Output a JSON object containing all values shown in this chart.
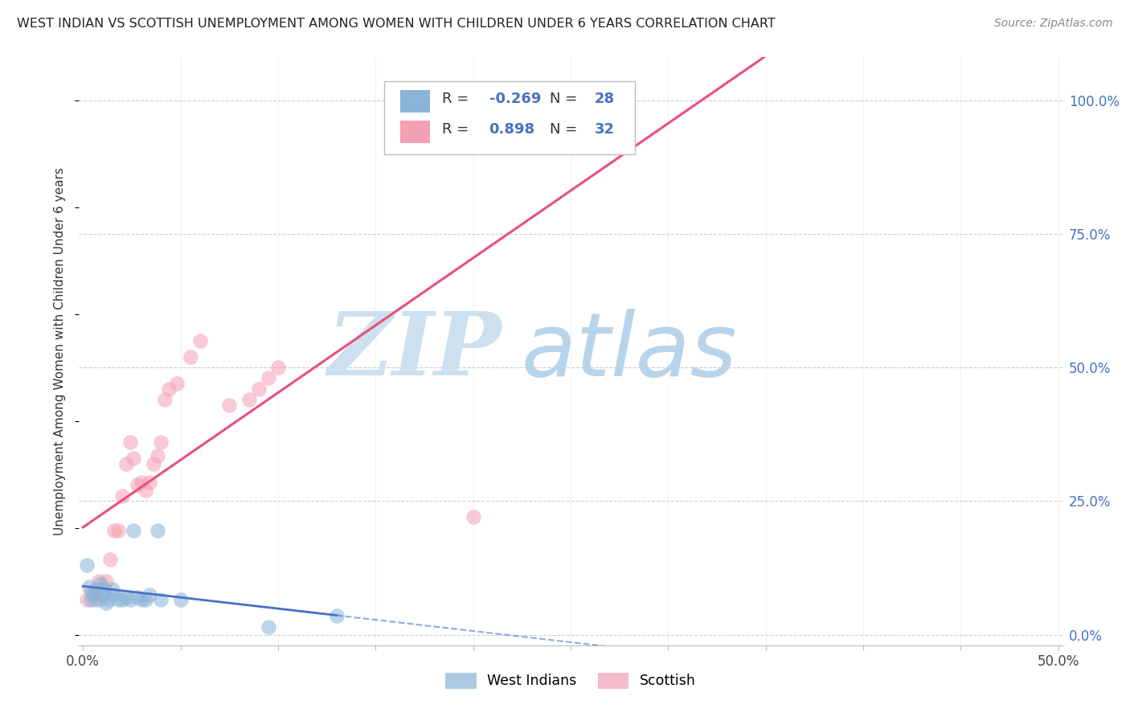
{
  "title": "WEST INDIAN VS SCOTTISH UNEMPLOYMENT AMONG WOMEN WITH CHILDREN UNDER 6 YEARS CORRELATION CHART",
  "source": "Source: ZipAtlas.com",
  "ylabel": "Unemployment Among Women with Children Under 6 years",
  "xlim": [
    -0.002,
    0.502
  ],
  "ylim": [
    -0.02,
    1.08
  ],
  "xtick_vals": [
    0.0,
    0.05,
    0.1,
    0.15,
    0.2,
    0.25,
    0.3,
    0.35,
    0.4,
    0.45,
    0.5
  ],
  "xtick_labels": [
    "0.0%",
    "",
    "",
    "",
    "",
    "",
    "",
    "",
    "",
    "",
    "50.0%"
  ],
  "ytick_right_vals": [
    0.0,
    0.25,
    0.5,
    0.75,
    1.0
  ],
  "ytick_right_labels": [
    "0.0%",
    "25.0%",
    "50.0%",
    "75.0%",
    "100.0%"
  ],
  "west_indian_R": -0.269,
  "west_indian_N": 28,
  "scottish_R": 0.898,
  "scottish_N": 32,
  "wi_color": "#8ab4d8",
  "sc_color": "#f5a0b5",
  "wi_line_color": "#4472c4",
  "sc_line_color": "#e8507a",
  "wi_x": [
    0.002,
    0.003,
    0.004,
    0.005,
    0.006,
    0.007,
    0.008,
    0.009,
    0.01,
    0.011,
    0.012,
    0.013,
    0.015,
    0.016,
    0.018,
    0.02,
    0.022,
    0.024,
    0.026,
    0.028,
    0.03,
    0.032,
    0.034,
    0.038,
    0.04,
    0.05,
    0.095,
    0.13
  ],
  "wi_y": [
    0.13,
    0.09,
    0.065,
    0.075,
    0.08,
    0.085,
    0.065,
    0.095,
    0.075,
    0.085,
    0.06,
    0.065,
    0.085,
    0.075,
    0.065,
    0.065,
    0.07,
    0.065,
    0.195,
    0.07,
    0.065,
    0.065,
    0.075,
    0.195,
    0.065,
    0.065,
    0.015,
    0.035
  ],
  "sc_x": [
    0.002,
    0.004,
    0.006,
    0.008,
    0.01,
    0.012,
    0.014,
    0.016,
    0.018,
    0.02,
    0.022,
    0.024,
    0.026,
    0.028,
    0.03,
    0.032,
    0.034,
    0.036,
    0.038,
    0.04,
    0.042,
    0.044,
    0.048,
    0.055,
    0.06,
    0.075,
    0.085,
    0.09,
    0.095,
    0.1,
    0.2,
    0.26
  ],
  "sc_y": [
    0.065,
    0.08,
    0.065,
    0.1,
    0.075,
    0.1,
    0.14,
    0.195,
    0.195,
    0.26,
    0.32,
    0.36,
    0.33,
    0.28,
    0.285,
    0.27,
    0.285,
    0.32,
    0.335,
    0.36,
    0.44,
    0.46,
    0.47,
    0.52,
    0.55,
    0.43,
    0.44,
    0.46,
    0.48,
    0.5,
    0.22,
    1.0
  ],
  "watermark_zip_color": "#cce0f0",
  "watermark_atlas_color": "#b8d4ea"
}
